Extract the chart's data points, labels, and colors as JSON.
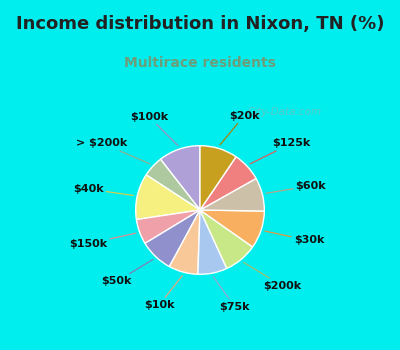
{
  "title": "Income distribution in Nixon, TN (%)",
  "subtitle": "Multirace residents",
  "title_color": "#222222",
  "subtitle_color": "#6b9e7a",
  "bg_outer": "#00eeee",
  "bg_inner_color": "#e0f5ee",
  "watermark": "City-Data.com",
  "labels": [
    "$100k",
    "> $200k",
    "$40k",
    "$150k",
    "$50k",
    "$10k",
    "$75k",
    "$200k",
    "$30k",
    "$60k",
    "$125k",
    "$20k"
  ],
  "values": [
    10,
    5,
    11,
    6,
    8,
    7,
    7,
    8,
    9,
    8,
    7,
    9
  ],
  "colors": [
    "#b0a0d8",
    "#aec8a0",
    "#f5f080",
    "#f0a0a8",
    "#9090cc",
    "#f8c898",
    "#a8c8f0",
    "#c8e888",
    "#f8b060",
    "#ccc0a8",
    "#f08080",
    "#c8a020"
  ],
  "label_line_colors": [
    "#a090c0",
    "#90b090",
    "#d0d050",
    "#e09090",
    "#8080b8",
    "#e0aa80",
    "#90aad0",
    "#a0c070",
    "#e09840",
    "#b0a888",
    "#d86060",
    "#a88010"
  ],
  "startangle": 90,
  "title_fontsize": 13,
  "subtitle_fontsize": 10,
  "label_fontsize": 8
}
